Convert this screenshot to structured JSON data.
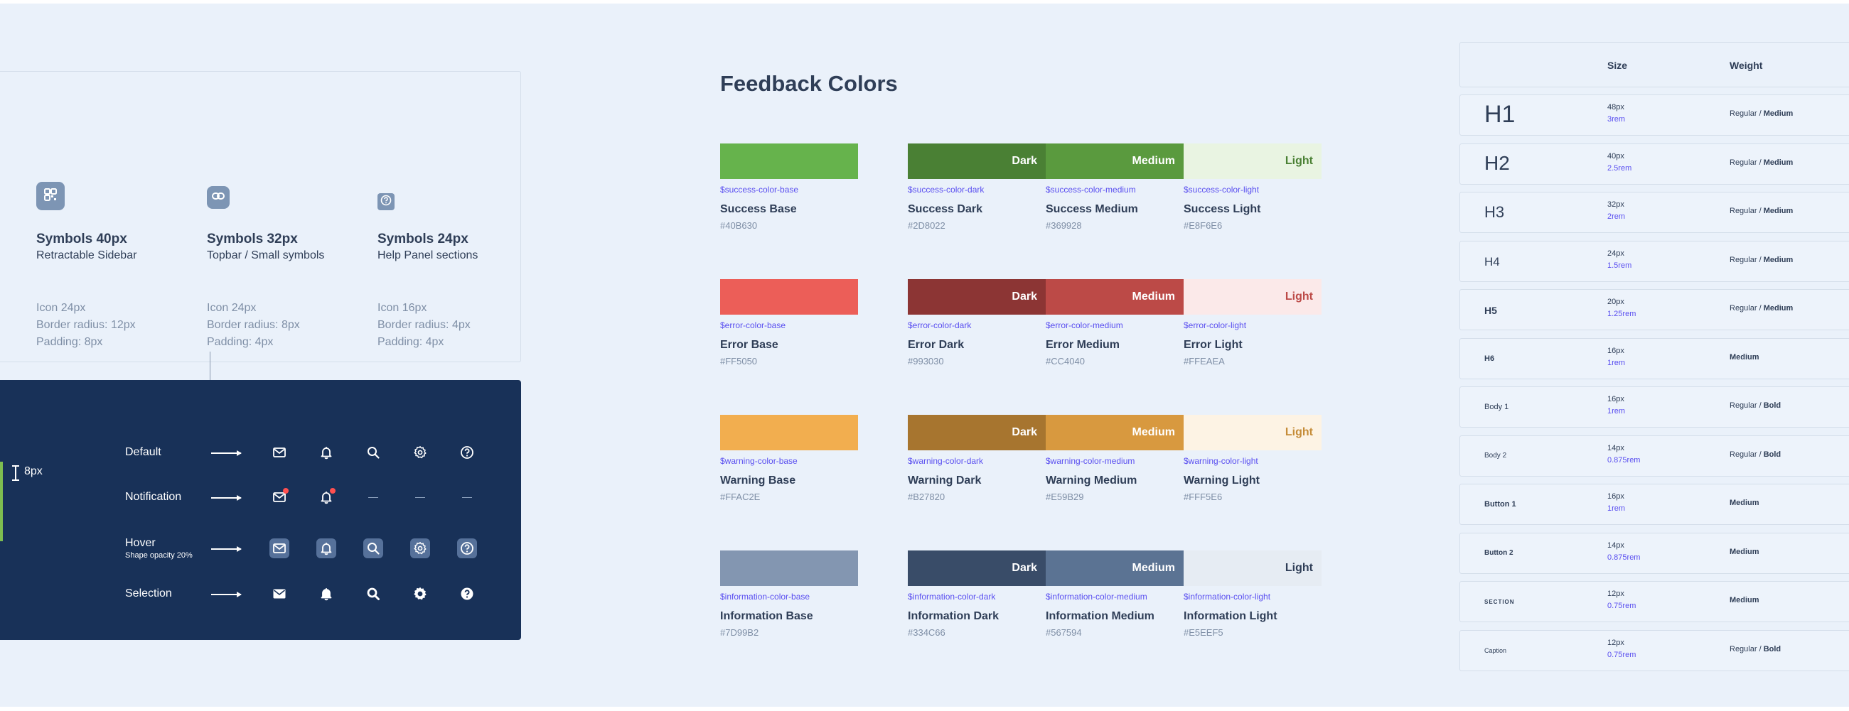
{
  "symbols": {
    "columns": [
      {
        "title": "Symbols 40px",
        "subtitle": "Retractable Sidebar",
        "specs": [
          "Icon 24px",
          "Border radius: 12px",
          "Padding: 8px"
        ],
        "icon": "grid-icon"
      },
      {
        "title": "Symbols 32px",
        "subtitle": "Topbar / Small symbols",
        "specs": [
          "Icon 24px",
          "Border radius: 8px",
          "Padding: 4px"
        ],
        "icon": "link-icon"
      },
      {
        "title": "Symbols 24px",
        "subtitle": "Help Panel sections",
        "specs": [
          "Icon 16px",
          "Border radius: 4px",
          "Padding: 4px"
        ],
        "icon": "help-icon"
      }
    ]
  },
  "states": {
    "measure": "8px",
    "rows": [
      {
        "label": "Default",
        "sublabel": ""
      },
      {
        "label": "Notification",
        "sublabel": ""
      },
      {
        "label": "Hover",
        "sublabel": "Shape opacity 20%"
      },
      {
        "label": "Selection",
        "sublabel": ""
      }
    ],
    "icons": [
      "mail-icon",
      "bell-icon",
      "search-icon",
      "gear-icon",
      "help-icon"
    ]
  },
  "feedback": {
    "title": "Feedback Colors",
    "groups": [
      {
        "base": {
          "var": "$success-color-base",
          "name": "Success Base",
          "hex": "#40B630",
          "color": "#66b34c"
        },
        "dark": {
          "label": "Dark",
          "var": "$success-color-dark",
          "name": "Success Dark",
          "hex": "#2D8022",
          "color": "#4a8034"
        },
        "medium": {
          "label": "Medium",
          "var": "$success-color-medium",
          "name": "Success Medium",
          "hex": "#369928",
          "color": "#5a9a3e"
        },
        "light": {
          "label": "Light",
          "var": "$success-color-light",
          "name": "Success Light",
          "hex": "#E8F6E6",
          "color": "#e9f4e2",
          "text": "#4a8034"
        }
      },
      {
        "base": {
          "var": "$error-color-base",
          "name": "Error Base",
          "hex": "#FF5050",
          "color": "#ec5e58"
        },
        "dark": {
          "label": "Dark",
          "var": "$error-color-dark",
          "name": "Error Dark",
          "hex": "#993030",
          "color": "#8c3534"
        },
        "medium": {
          "label": "Medium",
          "var": "$error-color-medium",
          "name": "Error Medium",
          "hex": "#CC4040",
          "color": "#bc4a47"
        },
        "light": {
          "label": "Light",
          "var": "$error-color-light",
          "name": "Error Light",
          "hex": "#FFEAEA",
          "color": "#fbe9e9",
          "text": "#bc4a47"
        }
      },
      {
        "base": {
          "var": "$warning-color-base",
          "name": "Warning Base",
          "hex": "#FFAC2E",
          "color": "#f2ae4f"
        },
        "dark": {
          "label": "Dark",
          "var": "$warning-color-dark",
          "name": "Warning Dark",
          "hex": "#B27820",
          "color": "#a7752f"
        },
        "medium": {
          "label": "Medium",
          "var": "$warning-color-medium",
          "name": "Warning Medium",
          "hex": "#E59B29",
          "color": "#d8993f"
        },
        "light": {
          "label": "Light",
          "var": "$warning-color-light",
          "name": "Warning Light",
          "hex": "#FFF5E6",
          "color": "#fdf3e4",
          "text": "#c58c38"
        }
      },
      {
        "base": {
          "var": "$information-color-base",
          "name": "Information Base",
          "hex": "#7D99B2",
          "color": "#8396b1"
        },
        "dark": {
          "label": "Dark",
          "var": "$information-color-dark",
          "name": "Information Dark",
          "hex": "#334C66",
          "color": "#394c68"
        },
        "medium": {
          "label": "Medium",
          "var": "$information-color-medium",
          "name": "Information Medium",
          "hex": "#567594",
          "color": "#5b7393"
        },
        "light": {
          "label": "Light",
          "var": "$information-color-light",
          "name": "Information Light",
          "hex": "#E5EEF5",
          "color": "#e6ecf3",
          "text": "#2f3e57"
        }
      }
    ]
  },
  "typography": {
    "headers": {
      "size": "Size",
      "weight": "Weight"
    },
    "rows": [
      {
        "name": "H1",
        "px": "48px",
        "rem": "3rem",
        "weight_a": "Regular / ",
        "weight_b": "Medium"
      },
      {
        "name": "H2",
        "px": "40px",
        "rem": "2.5rem",
        "weight_a": "Regular / ",
        "weight_b": "Medium"
      },
      {
        "name": "H3",
        "px": "32px",
        "rem": "2rem",
        "weight_a": "Regular / ",
        "weight_b": "Medium"
      },
      {
        "name": "H4",
        "px": "24px",
        "rem": "1.5rem",
        "weight_a": "Regular / ",
        "weight_b": "Medium"
      },
      {
        "name": "H5",
        "px": "20px",
        "rem": "1.25rem",
        "weight_a": "Regular / ",
        "weight_b": "Medium"
      },
      {
        "name": "H6",
        "px": "16px",
        "rem": "1rem",
        "weight_a": "",
        "weight_b": "Medium"
      },
      {
        "name": "Body 1",
        "px": "16px",
        "rem": "1rem",
        "weight_a": "Regular / ",
        "weight_b": "Bold"
      },
      {
        "name": "Body 2",
        "px": "14px",
        "rem": "0.875rem",
        "weight_a": "Regular / ",
        "weight_b": "Bold"
      },
      {
        "name": "Button 1",
        "px": "16px",
        "rem": "1rem",
        "weight_a": "",
        "weight_b": "Medium"
      },
      {
        "name": "Button 2",
        "px": "14px",
        "rem": "0.875rem",
        "weight_a": "",
        "weight_b": "Medium"
      },
      {
        "name": "SECTION",
        "px": "12px",
        "rem": "0.75rem",
        "weight_a": "",
        "weight_b": "Medium"
      },
      {
        "name": "Caption",
        "px": "12px",
        "rem": "0.75rem",
        "weight_a": "Regular / ",
        "weight_b": "Bold"
      }
    ]
  }
}
